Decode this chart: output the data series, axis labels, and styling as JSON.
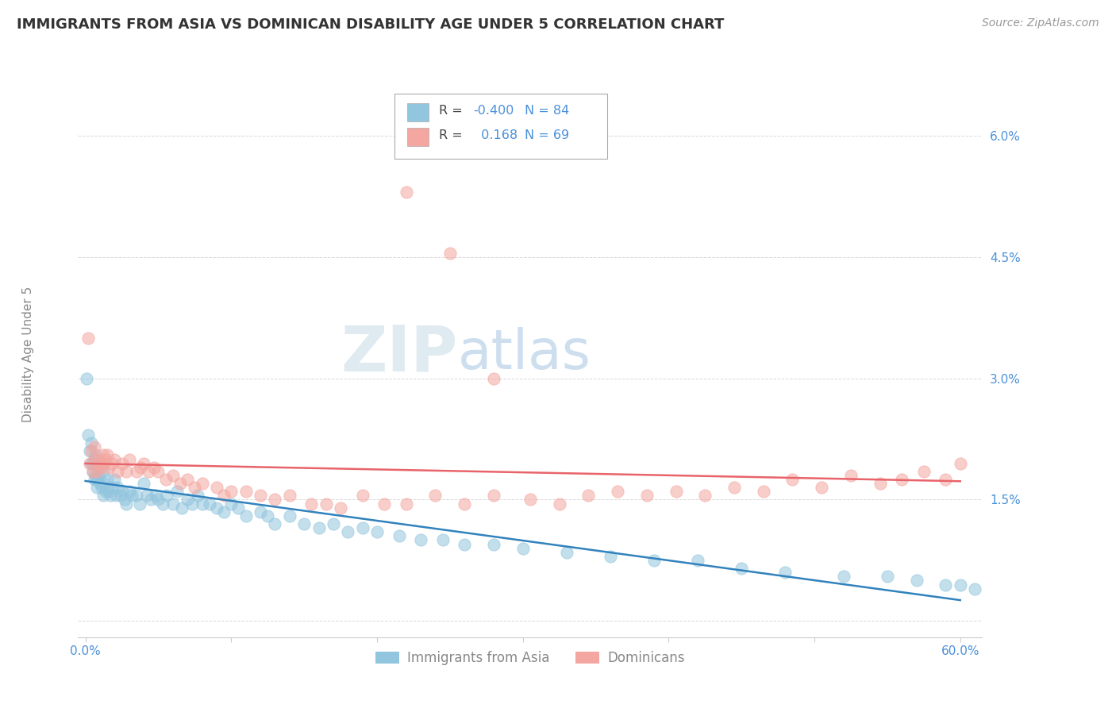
{
  "title": "IMMIGRANTS FROM ASIA VS DOMINICAN DISABILITY AGE UNDER 5 CORRELATION CHART",
  "source_text": "Source: ZipAtlas.com",
  "ylabel": "Disability Age Under 5",
  "xlim": [
    -0.005,
    0.615
  ],
  "ylim": [
    -0.002,
    0.068
  ],
  "yticks": [
    0.0,
    0.015,
    0.03,
    0.045,
    0.06
  ],
  "ytick_labels": [
    "",
    "1.5%",
    "3.0%",
    "4.5%",
    "6.0%"
  ],
  "xticks": [
    0.0,
    0.1,
    0.2,
    0.3,
    0.4,
    0.5,
    0.6
  ],
  "xtick_labels": [
    "0.0%",
    "",
    "",
    "",
    "",
    "",
    "60.0%"
  ],
  "legend_labels": [
    "Immigrants from Asia",
    "Dominicans"
  ],
  "R_asia": -0.4,
  "N_asia": 84,
  "R_dominican": 0.168,
  "N_dominican": 69,
  "color_asia": "#92c5de",
  "color_dominican": "#f4a6a0",
  "color_asia_line": "#3182bd",
  "color_dominican_line": "#e8646a",
  "background_color": "#ffffff",
  "grid_color": "#d0d0d0",
  "title_color": "#333333",
  "tick_label_color": "#4a90d9",
  "asia_x": [
    0.001,
    0.002,
    0.003,
    0.004,
    0.004,
    0.005,
    0.005,
    0.006,
    0.006,
    0.007,
    0.007,
    0.008,
    0.008,
    0.009,
    0.01,
    0.01,
    0.011,
    0.012,
    0.012,
    0.013,
    0.014,
    0.015,
    0.016,
    0.017,
    0.018,
    0.02,
    0.021,
    0.022,
    0.024,
    0.025,
    0.027,
    0.028,
    0.03,
    0.032,
    0.035,
    0.037,
    0.04,
    0.042,
    0.045,
    0.048,
    0.05,
    0.053,
    0.056,
    0.06,
    0.063,
    0.066,
    0.07,
    0.073,
    0.077,
    0.08,
    0.085,
    0.09,
    0.095,
    0.1,
    0.105,
    0.11,
    0.12,
    0.125,
    0.13,
    0.14,
    0.15,
    0.16,
    0.17,
    0.18,
    0.19,
    0.2,
    0.215,
    0.23,
    0.245,
    0.26,
    0.28,
    0.3,
    0.33,
    0.36,
    0.39,
    0.42,
    0.45,
    0.48,
    0.52,
    0.55,
    0.57,
    0.59,
    0.6,
    0.61
  ],
  "asia_y": [
    0.03,
    0.023,
    0.021,
    0.0195,
    0.022,
    0.0185,
    0.0195,
    0.02,
    0.0175,
    0.0205,
    0.018,
    0.0175,
    0.0165,
    0.018,
    0.0195,
    0.017,
    0.0165,
    0.0185,
    0.0155,
    0.017,
    0.016,
    0.0175,
    0.016,
    0.0155,
    0.0165,
    0.0175,
    0.0155,
    0.0165,
    0.0155,
    0.016,
    0.015,
    0.0145,
    0.016,
    0.0155,
    0.0155,
    0.0145,
    0.017,
    0.0155,
    0.015,
    0.0155,
    0.015,
    0.0145,
    0.0155,
    0.0145,
    0.016,
    0.014,
    0.015,
    0.0145,
    0.0155,
    0.0145,
    0.0145,
    0.014,
    0.0135,
    0.0145,
    0.014,
    0.013,
    0.0135,
    0.013,
    0.012,
    0.013,
    0.012,
    0.0115,
    0.012,
    0.011,
    0.0115,
    0.011,
    0.0105,
    0.01,
    0.01,
    0.0095,
    0.0095,
    0.009,
    0.0085,
    0.008,
    0.0075,
    0.0075,
    0.0065,
    0.006,
    0.0055,
    0.0055,
    0.005,
    0.0045,
    0.0045,
    0.004
  ],
  "dominican_x": [
    0.002,
    0.003,
    0.004,
    0.005,
    0.006,
    0.007,
    0.008,
    0.009,
    0.01,
    0.011,
    0.012,
    0.013,
    0.014,
    0.015,
    0.016,
    0.018,
    0.02,
    0.022,
    0.025,
    0.028,
    0.03,
    0.035,
    0.038,
    0.04,
    0.043,
    0.047,
    0.05,
    0.055,
    0.06,
    0.065,
    0.07,
    0.075,
    0.08,
    0.09,
    0.095,
    0.1,
    0.11,
    0.12,
    0.13,
    0.14,
    0.155,
    0.165,
    0.175,
    0.19,
    0.205,
    0.22,
    0.24,
    0.26,
    0.28,
    0.305,
    0.325,
    0.345,
    0.365,
    0.385,
    0.405,
    0.425,
    0.445,
    0.465,
    0.485,
    0.505,
    0.525,
    0.545,
    0.56,
    0.575,
    0.59,
    0.6,
    0.22,
    0.25,
    0.28
  ],
  "dominican_y": [
    0.035,
    0.0195,
    0.021,
    0.0185,
    0.0215,
    0.02,
    0.0185,
    0.0195,
    0.02,
    0.019,
    0.0205,
    0.0195,
    0.02,
    0.0205,
    0.019,
    0.0195,
    0.02,
    0.0185,
    0.0195,
    0.0185,
    0.02,
    0.0185,
    0.019,
    0.0195,
    0.0185,
    0.019,
    0.0185,
    0.0175,
    0.018,
    0.017,
    0.0175,
    0.0165,
    0.017,
    0.0165,
    0.0155,
    0.016,
    0.016,
    0.0155,
    0.015,
    0.0155,
    0.0145,
    0.0145,
    0.014,
    0.0155,
    0.0145,
    0.0145,
    0.0155,
    0.0145,
    0.0155,
    0.015,
    0.0145,
    0.0155,
    0.016,
    0.0155,
    0.016,
    0.0155,
    0.0165,
    0.016,
    0.0175,
    0.0165,
    0.018,
    0.017,
    0.0175,
    0.0185,
    0.0175,
    0.0195,
    0.053,
    0.0455,
    0.03
  ]
}
